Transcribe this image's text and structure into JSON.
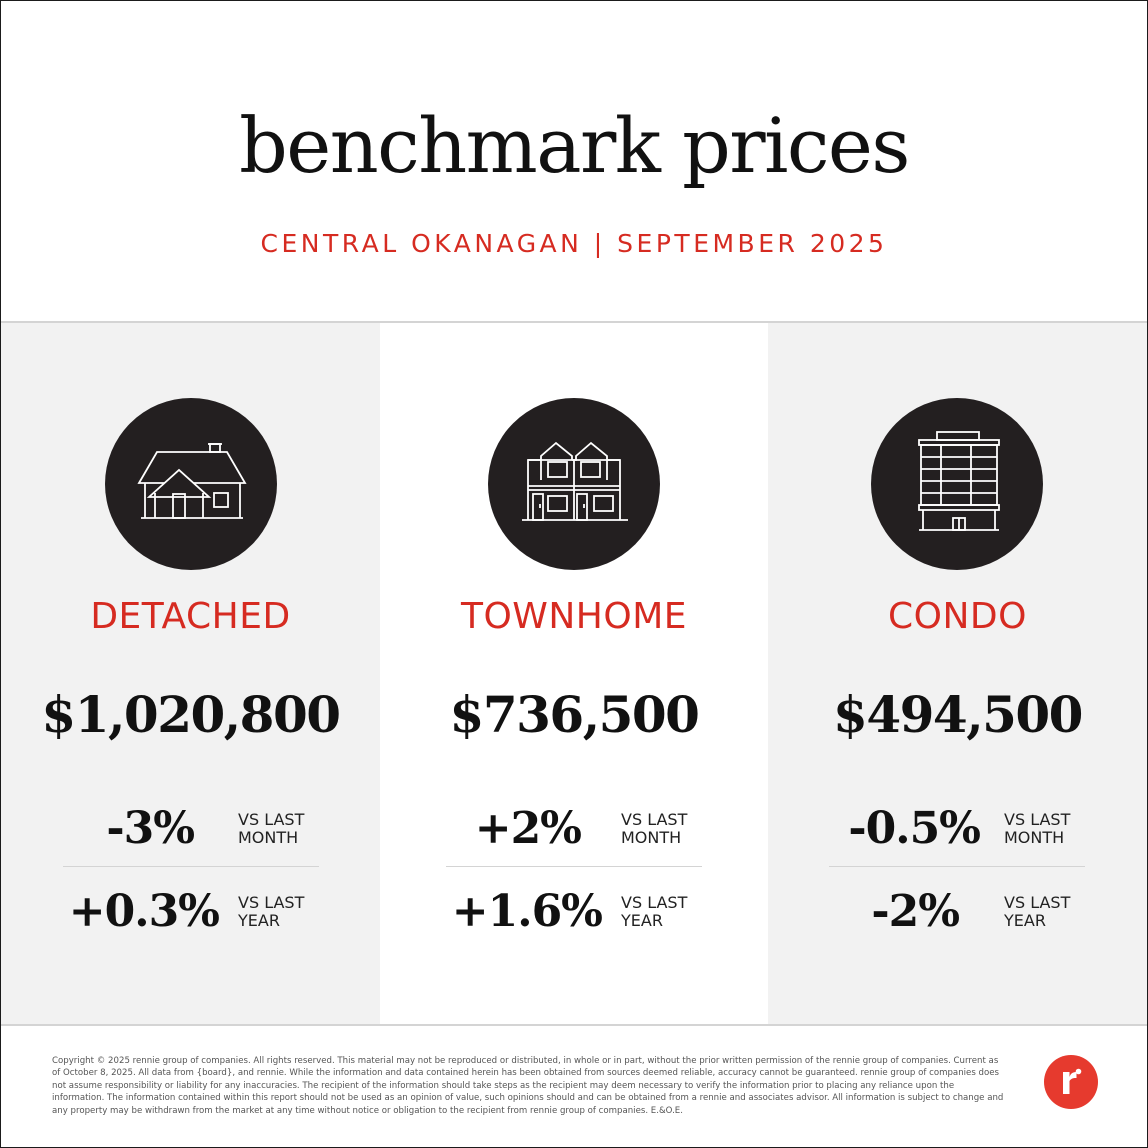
{
  "header": {
    "title": "benchmark prices",
    "subtitle": "CENTRAL OKANAGAN | SEPTEMBER 2025"
  },
  "colors": {
    "accent": "#d62b21",
    "icon_circle": "#231f20",
    "panel_gray": "#f2f2f2",
    "logo": "#e63a2e"
  },
  "columns": [
    {
      "icon": "detached-house-icon",
      "type": "DETACHED",
      "price": "$1,020,800",
      "month_change": "-3%",
      "month_label": "VS LAST\nMONTH",
      "year_change": "+0.3%",
      "year_label": "VS LAST\nYEAR"
    },
    {
      "icon": "townhome-icon",
      "type": "TOWNHOME",
      "price": "$736,500",
      "month_change": "+2%",
      "month_label": "VS LAST\nMONTH",
      "year_change": "+1.6%",
      "year_label": "VS LAST\nYEAR"
    },
    {
      "icon": "condo-building-icon",
      "type": "CONDO",
      "price": "$494,500",
      "month_change": "-0.5%",
      "month_label": "VS LAST\nMONTH",
      "year_change": "-2%",
      "year_label": "VS LAST\nYEAR"
    }
  ],
  "footer": {
    "disclaimer": "Copyright © 2025 rennie group of companies. All rights reserved. This material may not be reproduced or distributed, in whole or in part, without the prior written permission of the rennie group of companies. Current as of October 8, 2025. All data from {board}, and rennie. While the information and data contained herein has been obtained from sources deemed reliable, accuracy cannot be guaranteed. rennie group of companies does not assume responsibility or liability for any inaccuracies. The recipient of the information should take steps as the recipient may deem necessary to verify the information prior to placing any reliance upon the information. The information contained within this report should not be used as an opinion of value, such opinions should and can be obtained from a rennie and associates advisor. All information is subject to change and any property may be withdrawn from the market at any time without notice or obligation to the recipient from rennie group of companies. E.&O.E.",
    "logo_letter": "r"
  }
}
